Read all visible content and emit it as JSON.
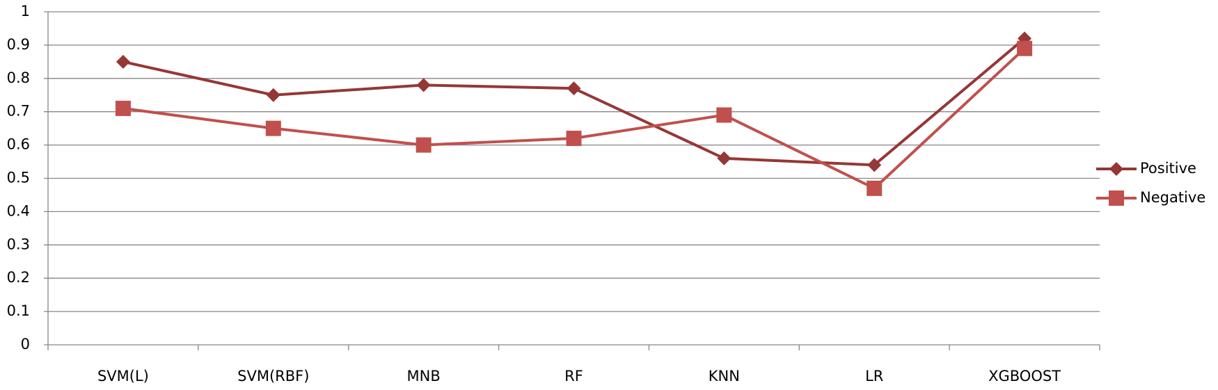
{
  "chart_data": {
    "type": "line",
    "categories": [
      "SVM(L)",
      "SVM(RBF)",
      "MNB",
      "RF",
      "KNN",
      "LR",
      "XGBOOST"
    ],
    "series": [
      {
        "name": "Positive",
        "color": "#953735",
        "marker": "diamond",
        "values": [
          0.85,
          0.75,
          0.78,
          0.77,
          0.56,
          0.54,
          0.92
        ]
      },
      {
        "name": "Negative",
        "color": "#c0504d",
        "marker": "square",
        "values": [
          0.71,
          0.65,
          0.6,
          0.62,
          0.69,
          0.47,
          0.89
        ]
      }
    ],
    "ylim": [
      0,
      1
    ],
    "yticks": [
      0,
      0.1,
      0.2,
      0.3,
      0.4,
      0.5,
      0.6,
      0.7,
      0.8,
      0.9,
      1
    ],
    "grid": true,
    "legend": "right"
  }
}
